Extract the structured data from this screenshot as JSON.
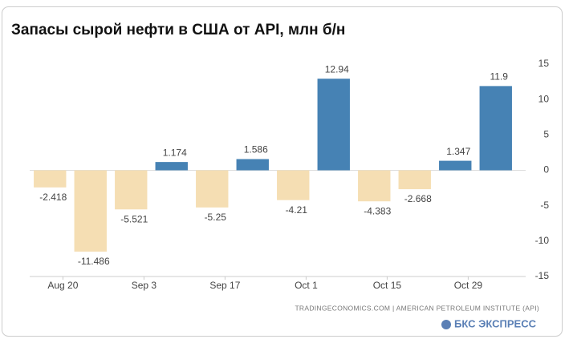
{
  "chart_data": {
    "type": "bar",
    "title": "Запасы сырой нефти в США от API, млн б/н",
    "categories": [
      "Aug 20",
      null,
      "Sep 3",
      null,
      "Sep 17",
      null,
      "Oct 1",
      null,
      "Oct 15",
      null,
      "Oct 29",
      null
    ],
    "values": [
      -2.418,
      -11.486,
      -5.521,
      1.174,
      -5.25,
      1.586,
      -4.21,
      12.94,
      -4.383,
      -2.668,
      1.347,
      11.9
    ],
    "positive_color": "#4682b4",
    "negative_color": "#f5deb3",
    "ylim": [
      -15,
      15
    ],
    "yticks": [
      -15,
      -10,
      -5,
      0,
      5,
      10,
      15
    ],
    "source": "TRADINGECONOMICS.COM  |  AMERICAN PETROLEUM INSTITUTE (API)",
    "brand": "БКС ЭКСПРЕСС"
  }
}
